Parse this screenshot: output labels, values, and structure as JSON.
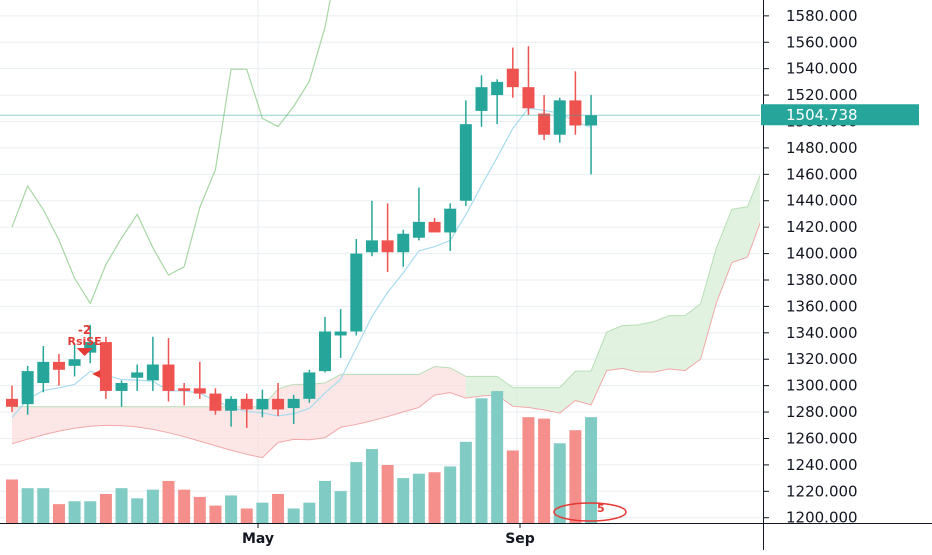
{
  "chart_data": {
    "type": "candlestick",
    "x_ticks": [
      "May",
      "Sep"
    ],
    "y_ticks": [
      1200,
      1220,
      1240,
      1260,
      1280,
      1300,
      1320,
      1340,
      1360,
      1380,
      1400,
      1420,
      1440,
      1460,
      1480,
      1500,
      1520,
      1540,
      1560,
      1580
    ],
    "y_tick_labels": [
      "1200.000",
      "1220.000",
      "1240.000",
      "1260.000",
      "1280.000",
      "1300.000",
      "1320.000",
      "1340.000",
      "1360.000",
      "1380.000",
      "1400.000",
      "1420.000",
      "1440.000",
      "1460.000",
      "1480.000",
      "1500.000",
      "1520.000",
      "1540.000",
      "1560.000",
      "1580.000"
    ],
    "ylim": [
      1196,
      1592
    ],
    "last_price": 1504.738,
    "last_price_label": "1504.738",
    "candles": [
      {
        "o": 1290,
        "h": 1300,
        "l": 1280,
        "c": 1284
      },
      {
        "o": 1286,
        "h": 1315,
        "l": 1278,
        "c": 1311
      },
      {
        "o": 1302,
        "h": 1330,
        "l": 1295,
        "c": 1318
      },
      {
        "o": 1318,
        "h": 1324,
        "l": 1300,
        "c": 1312
      },
      {
        "o": 1315,
        "h": 1332,
        "l": 1307,
        "c": 1320
      },
      {
        "o": 1325,
        "h": 1346,
        "l": 1317,
        "c": 1333
      },
      {
        "o": 1333,
        "h": 1337,
        "l": 1290,
        "c": 1296
      },
      {
        "o": 1296,
        "h": 1304,
        "l": 1284,
        "c": 1302
      },
      {
        "o": 1306,
        "h": 1316,
        "l": 1296,
        "c": 1310
      },
      {
        "o": 1304,
        "h": 1337,
        "l": 1296,
        "c": 1316
      },
      {
        "o": 1316,
        "h": 1336,
        "l": 1288,
        "c": 1296
      },
      {
        "o": 1298,
        "h": 1302,
        "l": 1285,
        "c": 1296
      },
      {
        "o": 1298,
        "h": 1318,
        "l": 1290,
        "c": 1294
      },
      {
        "o": 1294,
        "h": 1298,
        "l": 1278,
        "c": 1281
      },
      {
        "o": 1281,
        "h": 1292,
        "l": 1269,
        "c": 1290
      },
      {
        "o": 1290,
        "h": 1294,
        "l": 1268,
        "c": 1282
      },
      {
        "o": 1282,
        "h": 1297,
        "l": 1276,
        "c": 1290
      },
      {
        "o": 1290,
        "h": 1302,
        "l": 1277,
        "c": 1282
      },
      {
        "o": 1283,
        "h": 1293,
        "l": 1271,
        "c": 1290
      },
      {
        "o": 1290,
        "h": 1312,
        "l": 1287,
        "c": 1310
      },
      {
        "o": 1311,
        "h": 1352,
        "l": 1310,
        "c": 1341
      },
      {
        "o": 1338,
        "h": 1358,
        "l": 1321,
        "c": 1341
      },
      {
        "o": 1341,
        "h": 1411,
        "l": 1338,
        "c": 1400
      },
      {
        "o": 1401,
        "h": 1440,
        "l": 1398,
        "c": 1410
      },
      {
        "o": 1410,
        "h": 1438,
        "l": 1386,
        "c": 1401
      },
      {
        "o": 1401,
        "h": 1418,
        "l": 1390,
        "c": 1415
      },
      {
        "o": 1412,
        "h": 1450,
        "l": 1410,
        "c": 1424
      },
      {
        "o": 1424,
        "h": 1427,
        "l": 1416,
        "c": 1416
      },
      {
        "o": 1416,
        "h": 1438,
        "l": 1402,
        "c": 1434
      },
      {
        "o": 1440,
        "h": 1516,
        "l": 1436,
        "c": 1498
      },
      {
        "o": 1508,
        "h": 1535,
        "l": 1496,
        "c": 1526
      },
      {
        "o": 1520,
        "h": 1532,
        "l": 1498,
        "c": 1530
      },
      {
        "o": 1540,
        "h": 1556,
        "l": 1518,
        "c": 1526
      },
      {
        "o": 1526,
        "h": 1557,
        "l": 1505,
        "c": 1510
      },
      {
        "o": 1506,
        "h": 1520,
        "l": 1486,
        "c": 1490
      },
      {
        "o": 1490,
        "h": 1518,
        "l": 1484,
        "c": 1516
      },
      {
        "o": 1516,
        "h": 1538,
        "l": 1490,
        "c": 1497
      },
      {
        "o": 1497,
        "h": 1520,
        "l": 1460,
        "c": 1504.738
      }
    ],
    "volume": [
      30,
      24,
      24,
      13,
      15,
      15,
      20,
      24,
      17,
      23,
      29,
      23,
      18,
      12,
      19,
      10,
      14,
      20,
      10,
      14,
      29,
      22,
      42,
      51,
      40,
      31,
      34,
      35,
      39,
      56,
      86,
      91,
      50,
      73,
      72,
      55,
      64,
      73
    ],
    "volume_max": 100,
    "signal_label_top": "-2",
    "signal_label_bottom": "RsiSE",
    "badge_label": "5",
    "colors": {
      "up": "#26a69a",
      "down": "#ef5350",
      "up_volume": "#80cbc4",
      "down_volume": "#f48f8b",
      "price_tag": "#26a69a",
      "grid": "#e8eef1",
      "axis_text": "#131722",
      "ma_line": "#a8dcef",
      "green_line": "#a6d7a3",
      "cloud_red": "#fbdcdc",
      "cloud_green": "#d9efd9",
      "cloud_red_line": "#f2a8a8",
      "cloud_green_line": "#b7dfb5"
    }
  }
}
